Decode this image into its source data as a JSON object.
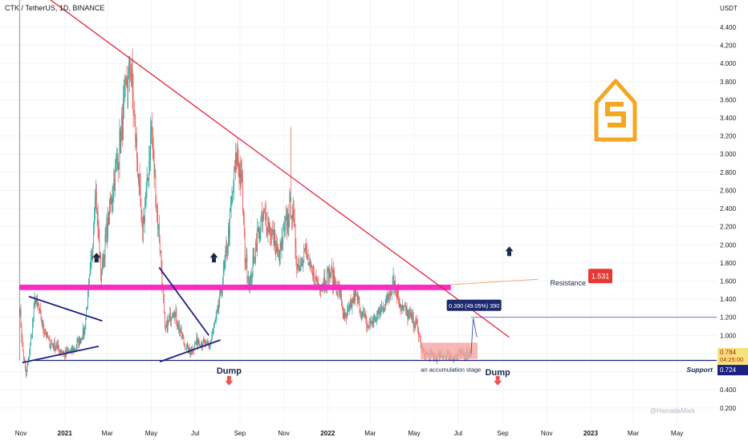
{
  "header": {
    "symbol_title": "CTK / TetherUS, 1D, BINANCE",
    "currency": "USDT",
    "watermark": "@HamadaMark"
  },
  "chart_data": {
    "type": "candlestick",
    "title": "CTK / TetherUS, 1D, BINANCE",
    "ylabel": "USDT",
    "ylim": [
      0.03,
      4.7
    ],
    "y_ticks": [
      0.2,
      0.4,
      0.6,
      0.8,
      1.0,
      1.2,
      1.4,
      1.6,
      1.8,
      2.0,
      2.2,
      2.4,
      2.6,
      2.8,
      3.0,
      3.2,
      3.4,
      3.6,
      3.8,
      4.0,
      4.2,
      4.4
    ],
    "y_tick_labels": [
      "0.200",
      "0.400",
      "0.600",
      "0.800",
      "1.000",
      "1.200",
      "1.400",
      "1.600",
      "1.800",
      "2.000",
      "2.200",
      "2.400",
      "2.600",
      "2.800",
      "3.000",
      "3.200",
      "3.400",
      "3.600",
      "3.800",
      "4.000",
      "4.200",
      "4.400"
    ],
    "x_ticks": [
      {
        "date": "2020-11-01",
        "label": "Nov"
      },
      {
        "date": "2021-01-01",
        "label": "2021"
      },
      {
        "date": "2021-03-01",
        "label": "Mar"
      },
      {
        "date": "2021-05-01",
        "label": "May"
      },
      {
        "date": "2021-07-01",
        "label": "Jul"
      },
      {
        "date": "2021-09-01",
        "label": "Sep"
      },
      {
        "date": "2021-11-01",
        "label": "Nov"
      },
      {
        "date": "2022-01-01",
        "label": "2022"
      },
      {
        "date": "2022-03-01",
        "label": "Mar"
      },
      {
        "date": "2022-05-01",
        "label": "May"
      },
      {
        "date": "2022-07-01",
        "label": "Jul"
      },
      {
        "date": "2022-09-01",
        "label": "Sep"
      },
      {
        "date": "2022-11-01",
        "label": "Nov"
      },
      {
        "date": "2023-01-01",
        "label": "2023"
      },
      {
        "date": "2023-03-01",
        "label": "Mar"
      },
      {
        "date": "2023-05-01",
        "label": "May"
      }
    ],
    "price_path": [
      {
        "date": "2020-10-30",
        "price": 1.33
      },
      {
        "date": "2020-11-03",
        "price": 0.9
      },
      {
        "date": "2020-11-08",
        "price": 0.55
      },
      {
        "date": "2020-11-15",
        "price": 0.95
      },
      {
        "date": "2020-11-21",
        "price": 1.42
      },
      {
        "date": "2020-12-01",
        "price": 1.12
      },
      {
        "date": "2020-12-10",
        "price": 0.92
      },
      {
        "date": "2020-12-20",
        "price": 0.88
      },
      {
        "date": "2021-01-01",
        "price": 0.79
      },
      {
        "date": "2021-01-15",
        "price": 0.85
      },
      {
        "date": "2021-01-28",
        "price": 1.05
      },
      {
        "date": "2021-02-08",
        "price": 1.9
      },
      {
        "date": "2021-02-12",
        "price": 2.68
      },
      {
        "date": "2021-02-20",
        "price": 1.65
      },
      {
        "date": "2021-03-01",
        "price": 2.2
      },
      {
        "date": "2021-03-10",
        "price": 2.7
      },
      {
        "date": "2021-03-20",
        "price": 3.2
      },
      {
        "date": "2021-03-28",
        "price": 3.78
      },
      {
        "date": "2021-04-02",
        "price": 3.98
      },
      {
        "date": "2021-04-10",
        "price": 3.1
      },
      {
        "date": "2021-04-18",
        "price": 2.15
      },
      {
        "date": "2021-04-25",
        "price": 2.6
      },
      {
        "date": "2021-05-01",
        "price": 3.3
      },
      {
        "date": "2021-05-08",
        "price": 2.45
      },
      {
        "date": "2021-05-14",
        "price": 1.88
      },
      {
        "date": "2021-05-20",
        "price": 1.05
      },
      {
        "date": "2021-06-01",
        "price": 1.3
      },
      {
        "date": "2021-06-12",
        "price": 0.98
      },
      {
        "date": "2021-06-22",
        "price": 0.82
      },
      {
        "date": "2021-07-05",
        "price": 0.95
      },
      {
        "date": "2021-07-20",
        "price": 0.86
      },
      {
        "date": "2021-08-01",
        "price": 1.25
      },
      {
        "date": "2021-08-10",
        "price": 1.7
      },
      {
        "date": "2021-08-20",
        "price": 2.4
      },
      {
        "date": "2021-08-28",
        "price": 3.05
      },
      {
        "date": "2021-09-04",
        "price": 2.6
      },
      {
        "date": "2021-09-08",
        "price": 1.9
      },
      {
        "date": "2021-09-15",
        "price": 1.55
      },
      {
        "date": "2021-09-25",
        "price": 2.1
      },
      {
        "date": "2021-10-05",
        "price": 2.3
      },
      {
        "date": "2021-10-15",
        "price": 2.15
      },
      {
        "date": "2021-10-25",
        "price": 1.85
      },
      {
        "date": "2021-11-05",
        "price": 2.25
      },
      {
        "date": "2021-11-12",
        "price": 2.45
      },
      {
        "date": "2021-11-20",
        "price": 1.75
      },
      {
        "date": "2021-11-30",
        "price": 1.95
      },
      {
        "date": "2021-12-10",
        "price": 1.65
      },
      {
        "date": "2021-12-20",
        "price": 1.55
      },
      {
        "date": "2022-01-05",
        "price": 1.7
      },
      {
        "date": "2022-01-18",
        "price": 1.45
      },
      {
        "date": "2022-01-25",
        "price": 1.15
      },
      {
        "date": "2022-02-08",
        "price": 1.45
      },
      {
        "date": "2022-02-25",
        "price": 1.1
      },
      {
        "date": "2022-03-10",
        "price": 1.2
      },
      {
        "date": "2022-03-25",
        "price": 1.4
      },
      {
        "date": "2022-04-02",
        "price": 1.62
      },
      {
        "date": "2022-04-12",
        "price": 1.35
      },
      {
        "date": "2022-04-25",
        "price": 1.2
      },
      {
        "date": "2022-05-05",
        "price": 1.1
      },
      {
        "date": "2022-05-12",
        "price": 0.82
      },
      {
        "date": "2022-05-20",
        "price": 0.78
      },
      {
        "date": "2022-06-01",
        "price": 0.76
      },
      {
        "date": "2022-06-15",
        "price": 0.78
      },
      {
        "date": "2022-06-28",
        "price": 0.77
      },
      {
        "date": "2022-07-10",
        "price": 0.8
      },
      {
        "date": "2022-07-20",
        "price": 0.81
      }
    ],
    "spikes": [
      {
        "date": "2021-03-31",
        "high": 4.0
      },
      {
        "date": "2021-08-28",
        "high": 3.07
      },
      {
        "date": "2021-11-11",
        "high": 3.3
      },
      {
        "date": "2022-04-02",
        "high": 1.75
      }
    ],
    "series": [
      {
        "name": "Resistance",
        "type": "hline",
        "value": 1.531
      },
      {
        "name": "Support",
        "type": "hline",
        "value": 0.724
      }
    ],
    "lines": {
      "descending_trendline": [
        {
          "date": "2020-11-08",
          "price": 4.9
        },
        {
          "date": "2022-09-10",
          "price": 0.98
        }
      ],
      "resistance_zone": {
        "from": "2020-10-30",
        "to": "2022-06-21",
        "low": 1.5,
        "high": 1.56
      },
      "resistance_thin": [
        {
          "date": "2022-06-21",
          "price": 1.56
        },
        {
          "date": "2022-10-20",
          "price": 1.62
        }
      ],
      "support_line": {
        "price": 0.724
      },
      "accumulation_box": {
        "from": "2022-05-10",
        "to": "2022-07-28",
        "low": 0.74,
        "high": 0.92
      },
      "measure_line": {
        "price": 1.2,
        "from": "2022-07-19"
      },
      "pattern_lines": [
        [
          {
            "date": "2020-11-03",
            "price": 0.7
          },
          {
            "date": "2021-02-17",
            "price": 0.88
          }
        ],
        [
          {
            "date": "2020-11-12",
            "price": 1.43
          },
          {
            "date": "2021-02-22",
            "price": 1.16
          }
        ],
        [
          {
            "date": "2021-05-13",
            "price": 0.71
          },
          {
            "date": "2021-08-05",
            "price": 0.95
          }
        ],
        [
          {
            "date": "2021-05-12",
            "price": 1.75
          },
          {
            "date": "2021-07-20",
            "price": 1.0
          }
        ]
      ]
    },
    "annotations": {
      "resistance_label": "Resistance",
      "resistance_value": "1.531",
      "support_label": "Support",
      "support_value": "0.724",
      "dump_label": "Dump",
      "accumulation_label": "an accumulation stage",
      "measure_label": "0.390 (49.05%) 390",
      "last_price": "0.784",
      "countdown": "04:25:00",
      "up_arrows": [
        {
          "date": "2021-02-14",
          "price": 1.85
        },
        {
          "date": "2021-07-27",
          "price": 1.85
        },
        {
          "date": "2022-09-10",
          "price": 1.92
        }
      ],
      "down_arrows": [
        {
          "date": "2021-08-17",
          "price": 0.5
        },
        {
          "date": "2022-08-25",
          "price": 0.5
        }
      ]
    },
    "colors": {
      "up": "#26a69a",
      "down": "#ef5350",
      "trendline": "#e5223a",
      "resistance_zone": "#f92cc6",
      "support": "#1d2183",
      "accumulation_box": "#f5a6a0",
      "measure": "#1e2a6e",
      "price_badge": "#f5e27a",
      "support_badge": "#1d2183",
      "resistance_badge": "#e53935",
      "logo": "#f5a623"
    }
  }
}
